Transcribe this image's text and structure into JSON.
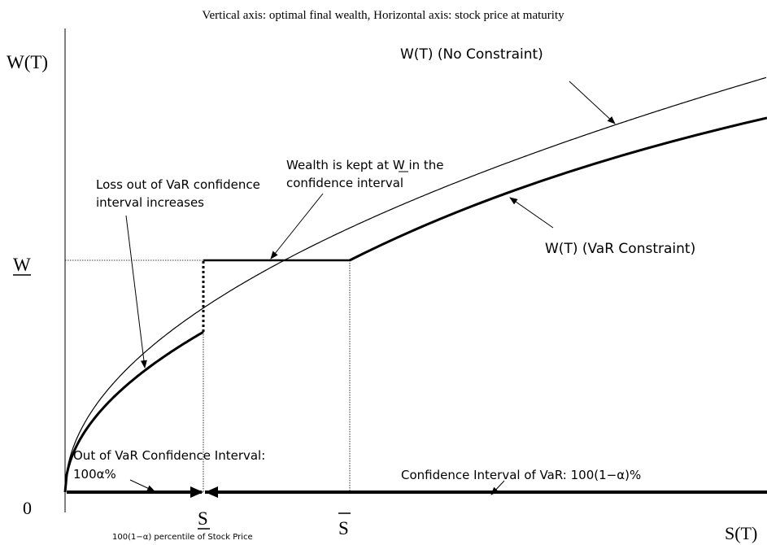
{
  "title": "Vertical axis: optimal final wealth,  Horizontal axis: stock price at maturity",
  "axes": {
    "y_label": "W(T)",
    "x_label": "S(T)",
    "origin": "0",
    "w_level": "W",
    "s_low": "S",
    "s_high": "S",
    "s_low_note": "100(1−α) percentile of Stock Price"
  },
  "annotations": {
    "no_constraint": "W(T) (No Constraint)",
    "var_constraint": "W(T) (VaR Constraint)",
    "kept": [
      "Wealth is kept at W in the",
      "confidence interval"
    ],
    "loss": [
      "Loss out of VaR confidence",
      "interval increases"
    ],
    "out_interval": [
      "Out of VaR Confidence Interval:",
      "100α%"
    ],
    "conf_interval": "Confidence Interval of VaR: 100(1−α)%"
  }
}
